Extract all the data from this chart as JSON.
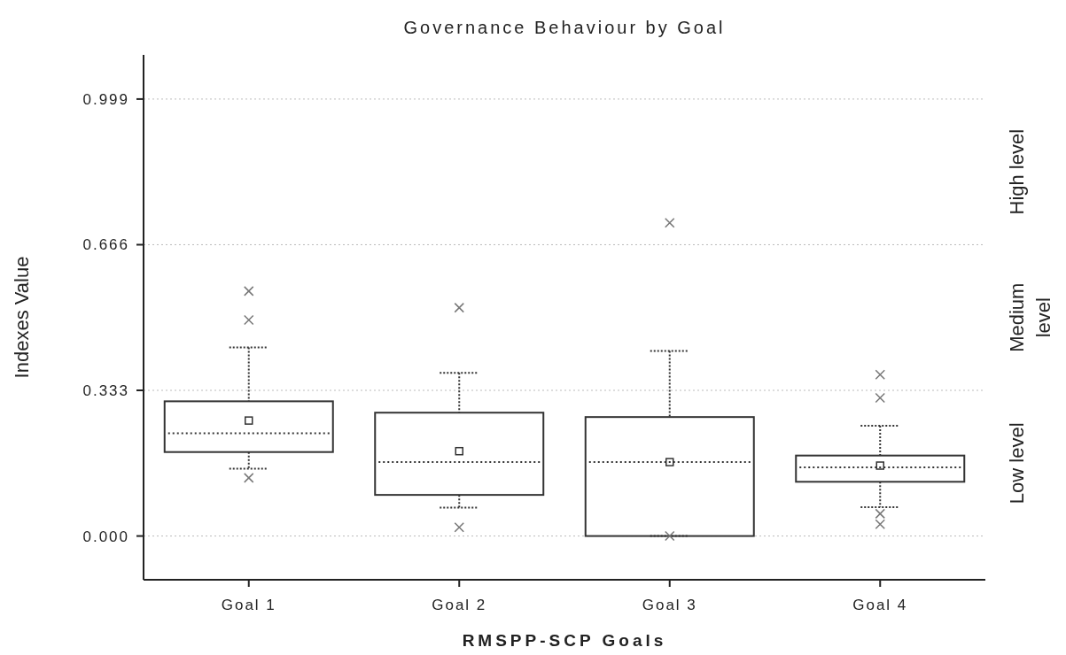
{
  "chart_data": {
    "type": "box",
    "title": "Governance Behaviour by Goal",
    "xlabel": "RMSPP-SCP Goals",
    "ylabel": "Indexes Value",
    "categories": [
      "Goal 1",
      "Goal 2",
      "Goal 3",
      "Goal 4"
    ],
    "boxes": [
      {
        "low": 0.154,
        "q1": 0.192,
        "median": 0.235,
        "q3": 0.308,
        "high": 0.431,
        "mean": 0.264,
        "outliers": [
          0.56,
          0.494,
          0.133
        ]
      },
      {
        "low": 0.065,
        "q1": 0.094,
        "median": 0.169,
        "q3": 0.282,
        "high": 0.373,
        "mean": 0.194,
        "outliers": [
          0.522,
          0.02
        ]
      },
      {
        "low": 0,
        "q1": 0,
        "median": 0.169,
        "q3": 0.272,
        "high": 0.423,
        "mean": 0.169,
        "outliers": [
          0.716,
          0
        ]
      },
      {
        "low": 0.066,
        "q1": 0.124,
        "median": 0.157,
        "q3": 0.184,
        "high": 0.252,
        "mean": 0.161,
        "outliers": [
          0.369,
          0.316,
          0.051,
          0.027
        ]
      }
    ],
    "color": "#333333",
    "ylim": [
      -0.1,
      1.1
    ],
    "yticks": [
      {
        "value": 0,
        "label": "0.000"
      },
      {
        "value": 0.333,
        "label": "0.333"
      },
      {
        "value": 0.666,
        "label": "0.666"
      },
      {
        "value": 0.999,
        "label": "0.999"
      }
    ],
    "grid": "y",
    "annotations": [
      "Low level",
      "Medium level",
      "High level"
    ]
  }
}
